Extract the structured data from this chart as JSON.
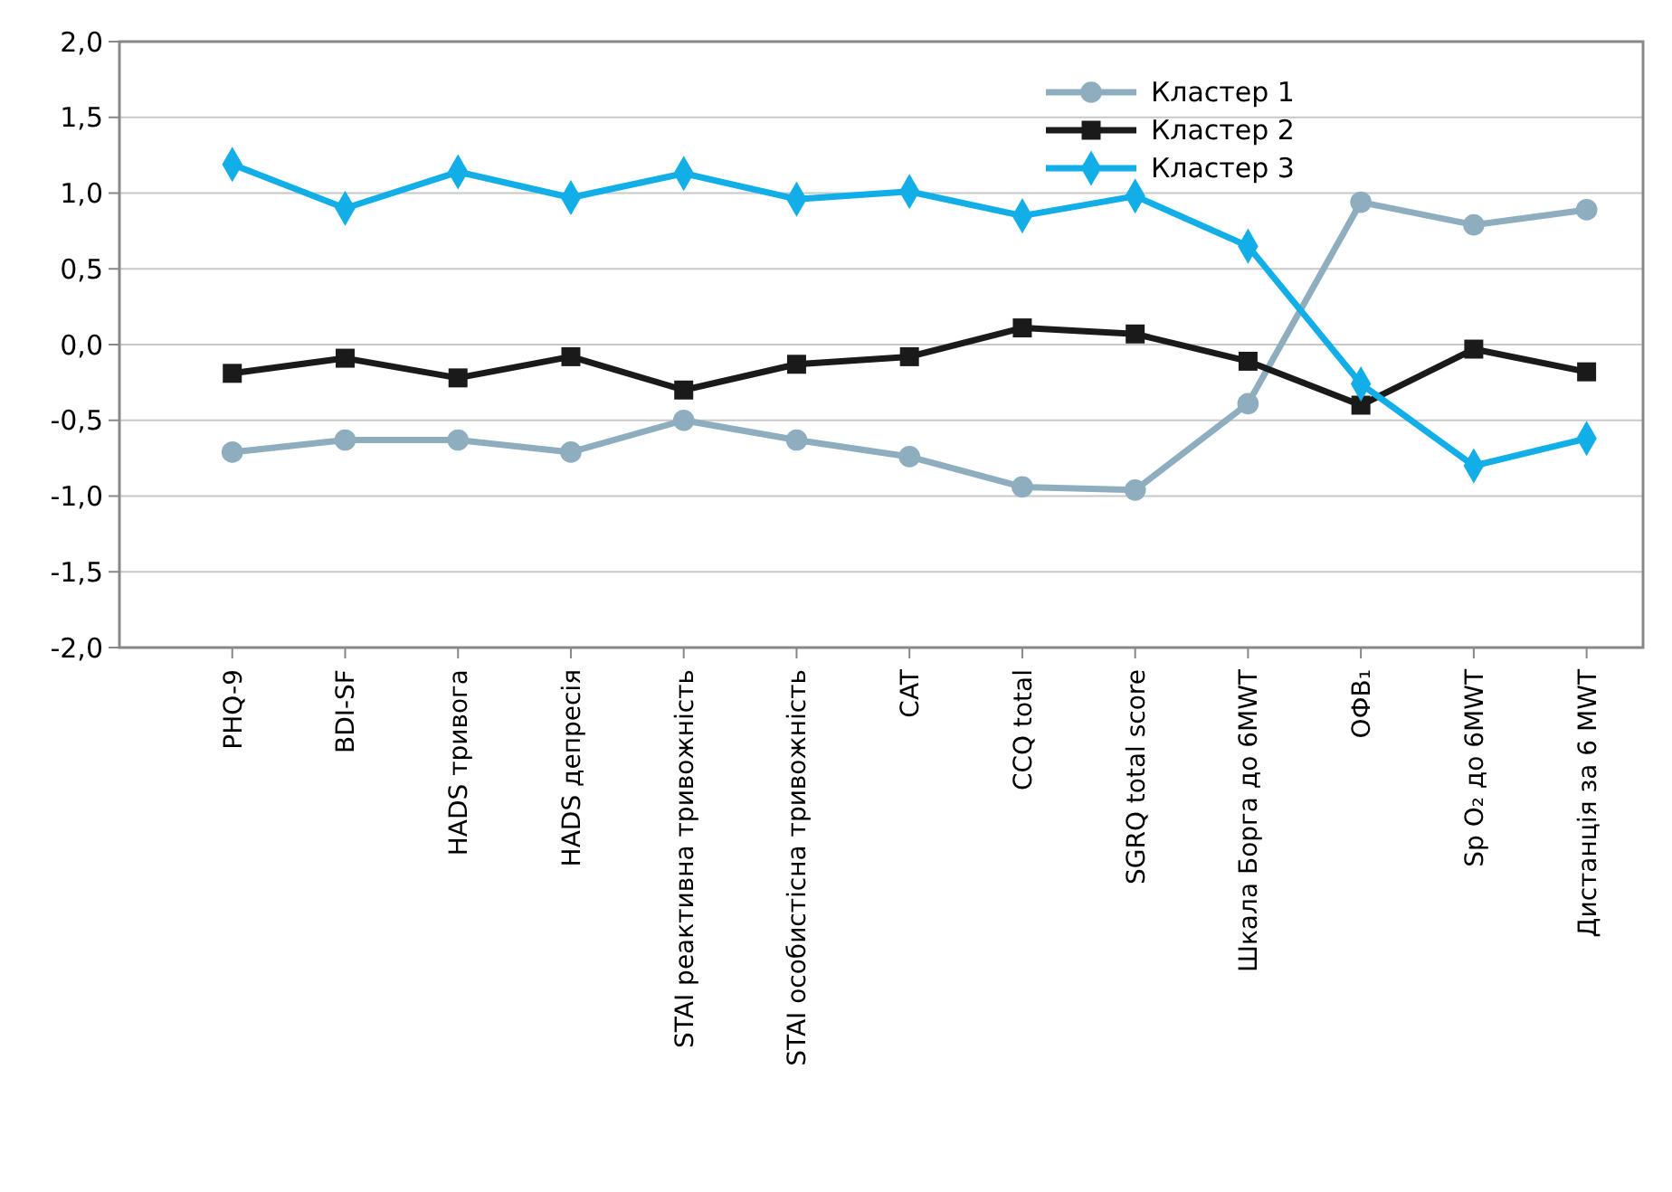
{
  "chart_data": {
    "type": "line",
    "categories": [
      "PHQ-9",
      "BDI-SF",
      "HADS тривога",
      "HADS депресія",
      "STAI реактивна тривожність",
      "STAI особистісна тривожність",
      "CAT",
      "CCQ total",
      "SGRQ total score",
      "Шкала Борга до 6MWT",
      "ОФВ₁",
      "Sp O₂ до 6MWT",
      "Дистанція за 6 MWT"
    ],
    "series": [
      {
        "name": "Кластер 1",
        "color": "#8eaebf",
        "marker": "circle",
        "values": [
          -0.71,
          -0.63,
          -0.63,
          -0.71,
          -0.5,
          -0.63,
          -0.74,
          -0.94,
          -0.96,
          -0.39,
          0.94,
          0.79,
          0.89
        ]
      },
      {
        "name": "Кластер 2",
        "color": "#1a1a1a",
        "marker": "square",
        "values": [
          -0.19,
          -0.09,
          -0.22,
          -0.08,
          -0.3,
          -0.13,
          -0.08,
          0.11,
          0.07,
          -0.11,
          -0.4,
          -0.03,
          -0.18
        ]
      },
      {
        "name": "Кластер 3",
        "color": "#12aee8",
        "marker": "diamond",
        "values": [
          1.19,
          0.9,
          1.14,
          0.97,
          1.13,
          0.96,
          1.01,
          0.85,
          0.98,
          0.65,
          -0.26,
          -0.8,
          -0.62
        ]
      }
    ],
    "ylim": [
      -2,
      2
    ],
    "yticks": [
      {
        "value": -2,
        "label": "-2,0"
      },
      {
        "value": -1.5,
        "label": "-1,5"
      },
      {
        "value": -1,
        "label": "-1,0"
      },
      {
        "value": -0.5,
        "label": "-0,5"
      },
      {
        "value": 0,
        "label": "0,0"
      },
      {
        "value": 0.5,
        "label": "0,5"
      },
      {
        "value": 1,
        "label": "1,0"
      },
      {
        "value": 1.5,
        "label": "1,5"
      },
      {
        "value": 2,
        "label": "2,0"
      }
    ],
    "grid": "y",
    "legend": "top right",
    "line_style": "solid"
  }
}
